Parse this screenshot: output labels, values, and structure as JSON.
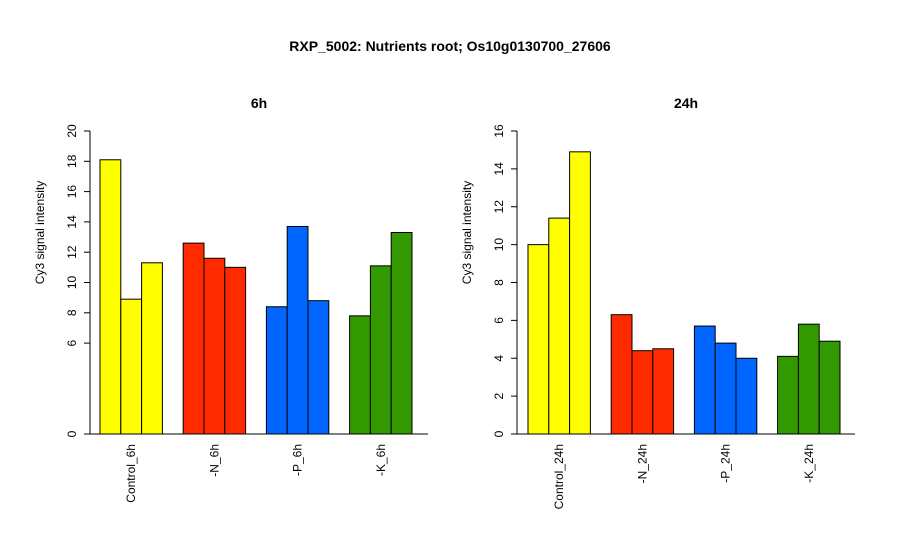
{
  "title": "RXP_5002: Nutrients root; Os10g0130700_27606",
  "chart_data": [
    {
      "type": "bar",
      "title": "6h",
      "ylabel": "Cy3 signal intensity",
      "ylim": [
        0,
        20
      ],
      "yticks": [
        0,
        6,
        8,
        10,
        12,
        14,
        16,
        18,
        20
      ],
      "grid": false,
      "groups": [
        {
          "label": "Control_6h",
          "color": "#FFFF00",
          "values": [
            18.1,
            8.9,
            11.3
          ]
        },
        {
          "label": "-N_6h",
          "color": "#FF2A00",
          "values": [
            12.6,
            11.6,
            11.0
          ]
        },
        {
          "label": "-P_6h",
          "color": "#0066FF",
          "values": [
            8.4,
            13.7,
            8.8
          ]
        },
        {
          "label": "-K_6h",
          "color": "#339900",
          "values": [
            7.8,
            11.1,
            13.3
          ]
        }
      ]
    },
    {
      "type": "bar",
      "title": "24h",
      "ylabel": "Cy3 signal intensity",
      "ylim": [
        0,
        16
      ],
      "yticks": [
        0,
        2,
        4,
        6,
        8,
        10,
        12,
        14,
        16
      ],
      "grid": false,
      "groups": [
        {
          "label": "Control_24h",
          "color": "#FFFF00",
          "values": [
            10.0,
            11.4,
            14.9
          ]
        },
        {
          "label": "-N_24h",
          "color": "#FF2A00",
          "values": [
            6.3,
            4.4,
            4.5
          ]
        },
        {
          "label": "-P_24h",
          "color": "#0066FF",
          "values": [
            5.7,
            4.8,
            4.0
          ]
        },
        {
          "label": "-K_24h",
          "color": "#339900",
          "values": [
            4.1,
            5.8,
            4.9
          ]
        }
      ]
    }
  ]
}
